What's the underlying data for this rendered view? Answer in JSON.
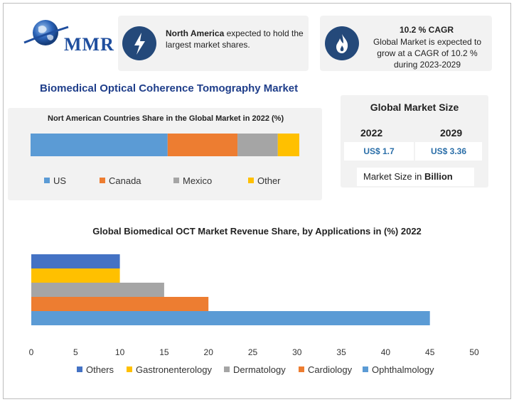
{
  "logo": {
    "text": "MMR"
  },
  "cards": {
    "north_america": {
      "bold": "North America",
      "rest": " expected to hold the largest market shares."
    },
    "cagr": {
      "heading": "10.2 % CAGR",
      "body": "Global Market is expected to grow at a CAGR of 10.2 % during 2023-2029"
    }
  },
  "main_title": "Biomedical Optical Coherence Tomography Market",
  "colors": {
    "blue": "#5b9bd5",
    "orange": "#ed7d31",
    "gray": "#a5a5a5",
    "yellow": "#ffc000",
    "darkblue": "#4472c4",
    "navy": "#24497a",
    "title_blue": "#1f3e8a"
  },
  "market_size": {
    "title": "Global Market Size",
    "year_a": "2022",
    "year_b": "2029",
    "value_a": "US$ 1.7",
    "value_b": "US$ 3.36",
    "unit_prefix": "Market Size in ",
    "unit_bold": "Billion"
  },
  "chart_data": [
    {
      "type": "bar",
      "orientation": "horizontal-stacked",
      "title": "Nort American Countries Share in the Global Market in 2022 (%)",
      "series": [
        {
          "name": "US",
          "value": 51,
          "color": "#5b9bd5"
        },
        {
          "name": "Canada",
          "value": 26,
          "color": "#ed7d31"
        },
        {
          "name": "Mexico",
          "value": 15,
          "color": "#a5a5a5"
        },
        {
          "name": "Other",
          "value": 8,
          "color": "#ffc000"
        }
      ],
      "legend_position": "bottom"
    },
    {
      "type": "bar",
      "orientation": "horizontal",
      "title": "Global Biomedical OCT Market Revenue Share, by Applications in (%) 2022",
      "series": [
        {
          "name": "Others",
          "value": 10,
          "color": "#4472c4"
        },
        {
          "name": "Gastronenterology",
          "value": 10,
          "color": "#ffc000"
        },
        {
          "name": "Dermatology",
          "value": 15,
          "color": "#a5a5a5"
        },
        {
          "name": "Cardiology",
          "value": 20,
          "color": "#ed7d31"
        },
        {
          "name": "Ophthalmology",
          "value": 45,
          "color": "#5b9bd5"
        }
      ],
      "xlim": [
        0,
        50
      ],
      "xticks": [
        "0",
        "5",
        "10",
        "15",
        "20",
        "25",
        "30",
        "35",
        "40",
        "45",
        "50"
      ],
      "grid": false,
      "legend_position": "bottom"
    }
  ]
}
